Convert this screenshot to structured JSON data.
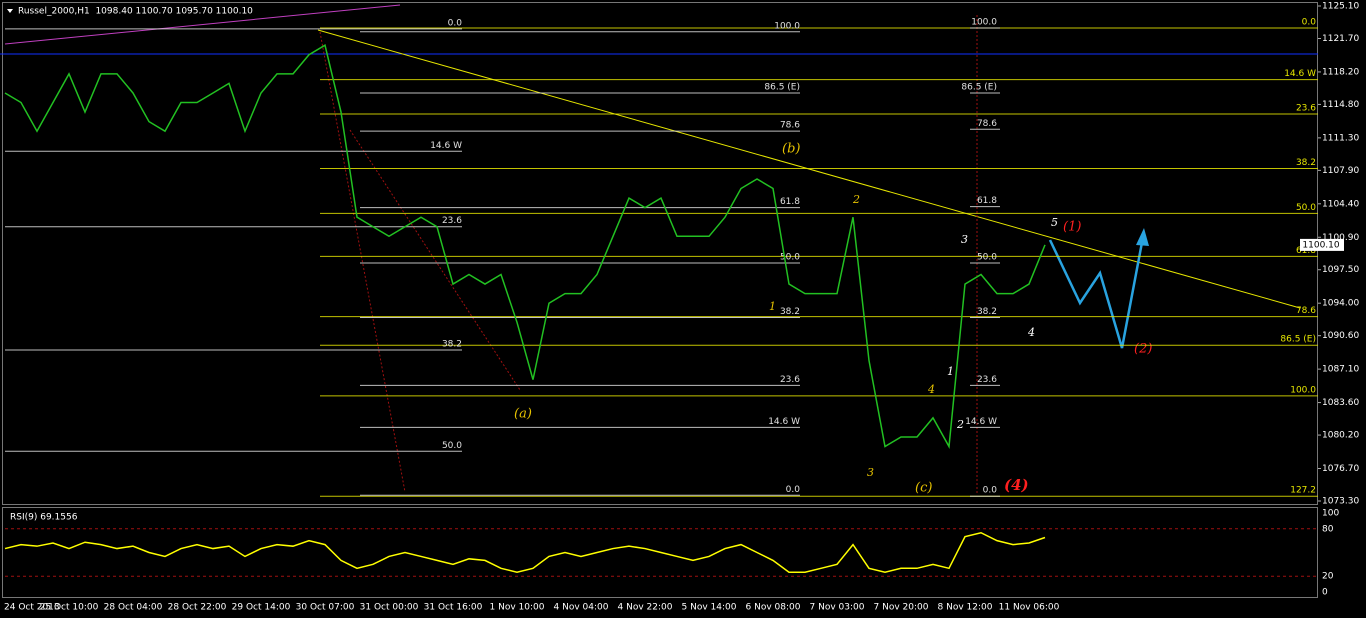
{
  "chart_data": [
    {
      "type": "line",
      "title": "Russel_2000,H1  1098.40 1100.70 1095.70 1100.10",
      "categories": [
        "24 Oct 2013",
        null,
        null,
        null,
        "25 Oct 10:00",
        null,
        null,
        null,
        "28 Oct 04:00",
        null,
        null,
        null,
        "28 Oct 22:00",
        null,
        null,
        null,
        "29 Oct 14:00",
        null,
        null,
        null,
        "30 Oct 07:00",
        null,
        null,
        null,
        "31 Oct 00:00",
        null,
        null,
        null,
        "31 Oct 16:00",
        null,
        null,
        null,
        "1 Nov 10:00",
        null,
        null,
        null,
        "4 Nov 04:00",
        null,
        null,
        null,
        "4 Nov 22:00",
        null,
        null,
        null,
        "5 Nov 14:00",
        null,
        null,
        null,
        "6 Nov 08:00",
        null,
        null,
        null,
        "7 Nov 03:00",
        null,
        null,
        null,
        "7 Nov 20:00",
        null,
        null,
        null,
        "8 Nov 12:00",
        null,
        null,
        null,
        "11 Nov 06:00",
        null,
        null,
        null,
        null,
        null,
        null,
        null,
        null,
        null,
        null,
        null,
        null,
        null,
        null,
        null,
        null
      ],
      "values": [
        1116,
        1115,
        1112,
        1115,
        1118,
        1114,
        1118,
        1118,
        1116,
        1113,
        1112,
        1115,
        1115,
        1116,
        1117,
        1112,
        1116,
        1118,
        1118,
        1120,
        1121,
        1114,
        1103,
        1102,
        1101,
        1102,
        1103,
        1102,
        1096,
        1097,
        1096,
        1097,
        1092,
        1086,
        1094,
        1095,
        1095,
        1097,
        1101,
        1105,
        1104,
        1105,
        1101,
        1101,
        1101,
        1103,
        1106,
        1107,
        1106,
        1096,
        1095,
        1095,
        1095,
        1103,
        1088,
        1079,
        1080,
        1080,
        1082,
        1079,
        1096,
        1097,
        1095,
        1095,
        1096,
        1100.1,
        null,
        null,
        null,
        null,
        null,
        null,
        null,
        null,
        null,
        null,
        null,
        null,
        null,
        null,
        null
      ],
      "color": "#22c022",
      "ylim": [
        1073.3,
        1125.1
      ],
      "yticks": [
        {
          "value": 1125.1,
          "label": "1125.10"
        },
        {
          "value": 1121.7,
          "label": "1121.70"
        },
        {
          "value": 1118.2,
          "label": "1118.20"
        },
        {
          "value": 1114.8,
          "label": "1114.80"
        },
        {
          "value": 1111.3,
          "label": "1111.30"
        },
        {
          "value": 1107.9,
          "label": "1107.90"
        },
        {
          "value": 1104.4,
          "label": "1104.40"
        },
        {
          "value": 1100.9,
          "label": "1100.90"
        },
        {
          "value": 1097.5,
          "label": "1097.50"
        },
        {
          "value": 1094,
          "label": "1094.00"
        },
        {
          "value": 1090.6,
          "label": "1090.60"
        },
        {
          "value": 1087.1,
          "label": "1087.10"
        },
        {
          "value": 1083.6,
          "label": "1083.60"
        },
        {
          "value": 1080.2,
          "label": "1080.20"
        },
        {
          "value": 1076.7,
          "label": "1076.70"
        },
        {
          "value": 1073.3,
          "label": "1073.30"
        }
      ],
      "last_price": {
        "value": 1100.1,
        "label": "1100.10"
      },
      "fib_levels": [
        {
          "color": "#e6e600",
          "levels": [
            {
              "label": "0.0",
              "value": 1122.8
            },
            {
              "label": "14.6 W",
              "value": 1117.4
            },
            {
              "label": "23.6",
              "value": 1113.8
            },
            {
              "label": "38.2",
              "value": 1108.1
            },
            {
              "label": "50.0",
              "value": 1103.4
            },
            {
              "label": "61.8",
              "value": 1098.9
            },
            {
              "label": "78.6",
              "value": 1092.6
            },
            {
              "label": "86.5 (E)",
              "value": 1089.6
            },
            {
              "label": "100.0",
              "value": 1084.3
            },
            {
              "label": "127.2",
              "value": 1073.8
            }
          ]
        },
        {
          "color": "#e0e0e0",
          "levels": [
            {
              "label": "0.0",
              "value": 1122.7
            },
            {
              "label": "14.6 W",
              "value": 1109.9
            },
            {
              "label": "23.6",
              "value": 1102
            },
            {
              "label": "38.2",
              "value": 1089.1
            },
            {
              "label": "50.0",
              "value": 1078.5
            }
          ]
        },
        {
          "color": "#e0e0e0",
          "levels": [
            {
              "label": "100.0",
              "value": 1122.4
            },
            {
              "label": "86.5 (E)",
              "value": 1116
            },
            {
              "label": "78.6",
              "value": 1112
            },
            {
              "label": "61.8",
              "value": 1104
            },
            {
              "label": "50.0",
              "value": 1098.2
            },
            {
              "label": "38.2",
              "value": 1092.5
            },
            {
              "label": "23.6",
              "value": 1085.4
            },
            {
              "label": "14.6 W",
              "value": 1081
            },
            {
              "label": "0.0",
              "value": 1073.9
            }
          ]
        },
        {
          "color": "#e0e0e0",
          "levels": [
            {
              "label": "100.0",
              "value": 1122.8
            },
            {
              "label": "86.5 (E)",
              "value": 1116
            },
            {
              "label": "78.6",
              "value": 1112.2
            },
            {
              "label": "61.8",
              "value": 1104.1
            },
            {
              "label": "50.0",
              "value": 1098.2
            },
            {
              "label": "38.2",
              "value": 1092.5
            },
            {
              "label": "23.6",
              "value": 1085.4
            },
            {
              "label": "14.6 W",
              "value": 1081
            },
            {
              "label": "0.0",
              "value": 1073.8
            }
          ]
        }
      ],
      "annotations": [
        "(a)",
        "(b)",
        "(c)",
        "(4)",
        "(1)",
        "(2)",
        "1",
        "2",
        "3",
        "4",
        "5",
        "1",
        "2",
        "3",
        "4"
      ]
    },
    {
      "type": "line",
      "title": "RSI(9) 69.1556",
      "values": [
        55,
        60,
        58,
        62,
        55,
        63,
        60,
        55,
        58,
        50,
        45,
        55,
        60,
        55,
        58,
        45,
        55,
        60,
        58,
        65,
        60,
        40,
        30,
        35,
        45,
        50,
        45,
        40,
        35,
        42,
        40,
        30,
        25,
        30,
        45,
        50,
        45,
        50,
        55,
        58,
        55,
        50,
        45,
        40,
        45,
        55,
        60,
        50,
        40,
        25,
        25,
        30,
        35,
        60,
        30,
        25,
        30,
        30,
        35,
        30,
        70,
        75,
        65,
        60,
        62,
        69,
        null,
        null,
        null,
        null,
        null,
        null,
        null,
        null,
        null,
        null,
        null,
        null,
        null,
        null,
        null
      ],
      "color": "#ffff00",
      "ylim": [
        0,
        100
      ],
      "yticks": [
        0,
        20,
        80,
        100
      ]
    }
  ]
}
